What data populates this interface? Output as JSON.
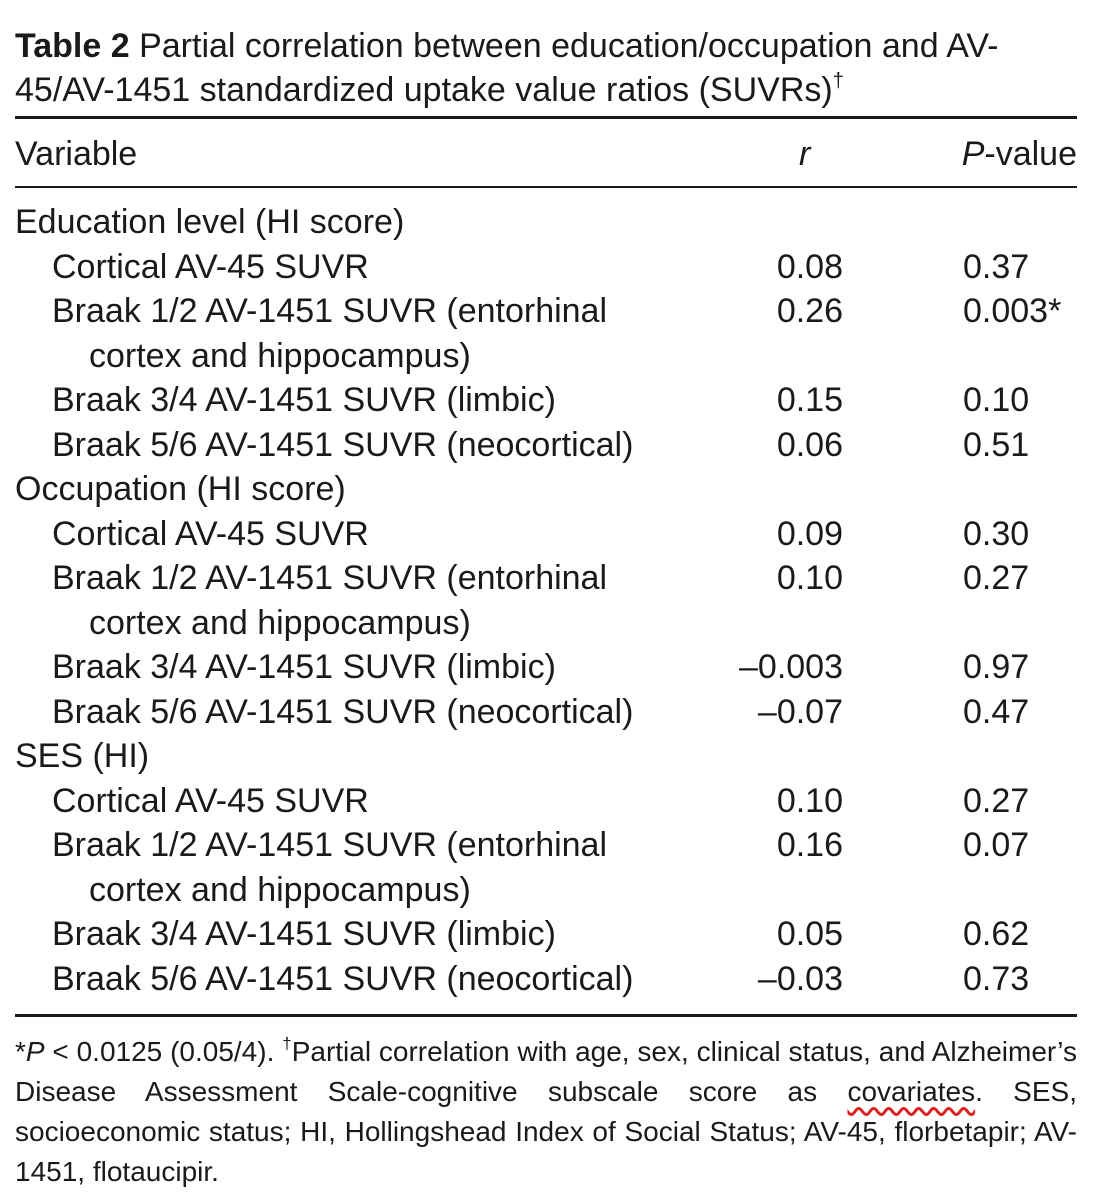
{
  "title": {
    "label": "Table 2",
    "text": "Partial correlation between education/occupation and AV-45/AV-1451 standardized uptake value ratios (SUVRs)",
    "mark": "†"
  },
  "header": {
    "variable": "Variable",
    "r": "r",
    "p_italic": "P",
    "p_rest": "-value"
  },
  "rows": [
    {
      "variable": "Education level (HI score)",
      "r": "",
      "p": ""
    },
    {
      "variable": "Cortical AV-45 SUVR",
      "r": "0.08",
      "p": "0.37"
    },
    {
      "variable": "Braak 1/2 AV-1451 SUVR (entorhinal",
      "variable_cont": "cortex and hippocampus)",
      "r": "0.26",
      "p": "0.003*"
    },
    {
      "variable": "Braak 3/4 AV-1451 SUVR (limbic)",
      "r": "0.15",
      "p": "0.10"
    },
    {
      "variable": "Braak 5/6 AV-1451 SUVR (neocortical)",
      "r": "0.06",
      "p": "0.51"
    },
    {
      "variable": "Occupation (HI score)",
      "r": "",
      "p": ""
    },
    {
      "variable": "Cortical AV-45 SUVR",
      "r": "0.09",
      "p": "0.30"
    },
    {
      "variable": "Braak 1/2 AV-1451 SUVR (entorhinal",
      "variable_cont": "cortex and hippocampus)",
      "r": "0.10",
      "p": "0.27"
    },
    {
      "variable": "Braak 3/4 AV-1451 SUVR (limbic)",
      "r": "–0.003",
      "p": "0.97"
    },
    {
      "variable": "Braak 5/6 AV-1451 SUVR (neocortical)",
      "r": "–0.07",
      "p": "0.47"
    },
    {
      "variable": "SES (HI)",
      "r": "",
      "p": ""
    },
    {
      "variable": "Cortical AV-45 SUVR",
      "r": "0.10",
      "p": "0.27"
    },
    {
      "variable": "Braak 1/2 AV-1451 SUVR (entorhinal",
      "variable_cont": "cortex and hippocampus)",
      "r": "0.16",
      "p": "0.07"
    },
    {
      "variable": "Braak 3/4 AV-1451 SUVR (limbic)",
      "r": "0.05",
      "p": "0.62"
    },
    {
      "variable": "Braak 5/6 AV-1451 SUVR (neocortical)",
      "r": "–0.03",
      "p": "0.73"
    }
  ],
  "footnote": {
    "star": "*",
    "p_italic": "P",
    "threshold": " < 0.0125 (0.05/4). ",
    "dagger": "†",
    "text_a": "Partial correlation with age, sex, clinical status, and Alzheimer’s Disease Assessment Scale-cognitive subscale score as ",
    "underlined": "covariates",
    "text_b": ". SES, socioeconomic status; HI, Hollingshead Index of Social Status; AV-45, florbetapir; AV-1451, flotaucipir."
  },
  "colors": {
    "text": "#1a1a1a",
    "spellcheck_underline": "#dd2222"
  }
}
